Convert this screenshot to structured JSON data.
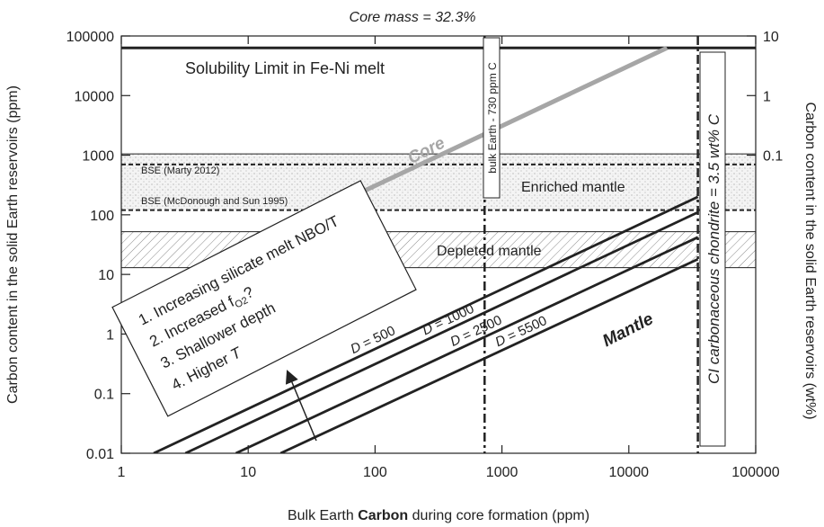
{
  "chart_data": {
    "type": "line",
    "title": "Core mass = 32.3%",
    "xlabel_prefix": "Bulk Earth ",
    "xlabel_bold": "Carbon",
    "xlabel_suffix": " during core formation (ppm)",
    "ylabel_left": "Carbon content in the solid Earth reservoirs (ppm)",
    "ylabel_right": "Carbon content in the solid Earth reservoirs (wt%)",
    "x_scale": "log",
    "y_scale": "log",
    "xlim": [
      1,
      100000
    ],
    "ylim": [
      0.01,
      100000
    ],
    "x_ticks": [
      {
        "v": 1,
        "label": "1"
      },
      {
        "v": 10,
        "label": "10"
      },
      {
        "v": 100,
        "label": "100"
      },
      {
        "v": 1000,
        "label": "1000"
      },
      {
        "v": 10000,
        "label": "10000"
      },
      {
        "v": 100000,
        "label": "100000"
      }
    ],
    "y_ticks_left": [
      {
        "v": 0.01,
        "label": "0.01"
      },
      {
        "v": 0.1,
        "label": "0.1"
      },
      {
        "v": 1,
        "label": "1"
      },
      {
        "v": 10,
        "label": "10"
      },
      {
        "v": 100,
        "label": "100"
      },
      {
        "v": 1000,
        "label": "1000"
      },
      {
        "v": 10000,
        "label": "10000"
      },
      {
        "v": 100000,
        "label": "100000"
      }
    ],
    "y_ticks_right": [
      {
        "v": 1000,
        "label": "0.1"
      },
      {
        "v": 10000,
        "label": "1"
      },
      {
        "v": 100000,
        "label": "10"
      }
    ],
    "solubility_limit": {
      "y": 63000,
      "label": "Solubility Limit in Fe-Ni melt"
    },
    "core_line": {
      "label": "Core",
      "color": "#a6a6a6",
      "x": [
        1,
        20000
      ],
      "y": [
        3,
        63000
      ]
    },
    "mantle_lines": [
      {
        "D": 500,
        "label_prefix": "D",
        "label": " = 500",
        "x": [
          1.8,
          35000
        ],
        "y": [
          0.01,
          200
        ]
      },
      {
        "D": 1000,
        "label_prefix": "D",
        "label": " = 1000",
        "x": [
          3.2,
          35000
        ],
        "y": [
          0.01,
          110
        ]
      },
      {
        "D": 2500,
        "label_prefix": "D",
        "label": " = 2500",
        "x": [
          8,
          35000
        ],
        "y": [
          0.01,
          42
        ]
      },
      {
        "D": 5500,
        "label_prefix": "D",
        "label": " = 5500",
        "x": [
          18,
          35000
        ],
        "y": [
          0.01,
          18
        ]
      }
    ],
    "mantle_label": "Mantle",
    "bse_lines": [
      {
        "y": 700,
        "label": "BSE (Marty 2012)"
      },
      {
        "y": 120,
        "label": "BSE (McDonough and Sun 1995)"
      }
    ],
    "enriched_mantle": {
      "y": [
        120,
        1050
      ],
      "label": "Enriched mantle"
    },
    "depleted_mantle": {
      "y": [
        13,
        52
      ],
      "label": "Depleted mantle"
    },
    "bulk_earth": {
      "x": 730,
      "label": "bulk Earth - 730 ppm C"
    },
    "ci_chondrite": {
      "x": 35000,
      "label": "CI carbonaceous chondrite = 3.5 wt% C"
    },
    "trend_box": {
      "items": [
        "1. Increasing silicate melt NBO/T",
        "2. Increased f",
        "O2",
        "?",
        "3. Shallower depth",
        "4. Higher ",
        "T"
      ]
    },
    "grid": false
  }
}
